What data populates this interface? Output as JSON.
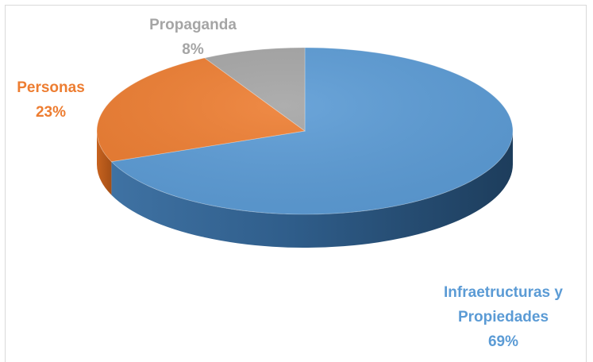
{
  "chart_data": {
    "type": "pie",
    "title": "",
    "slices": [
      {
        "label_lines": [
          "Infraetructuras y",
          "Propiedades"
        ],
        "pct_label": "69%",
        "value": 69,
        "color": "#5B9BD5"
      },
      {
        "label_lines": [
          "Personas"
        ],
        "pct_label": "23%",
        "value": 23,
        "color": "#ED7D31"
      },
      {
        "label_lines": [
          "Propaganda"
        ],
        "pct_label": "8%",
        "value": 8,
        "color": "#A5A5A5"
      }
    ],
    "style": "3d",
    "legend": "none"
  }
}
